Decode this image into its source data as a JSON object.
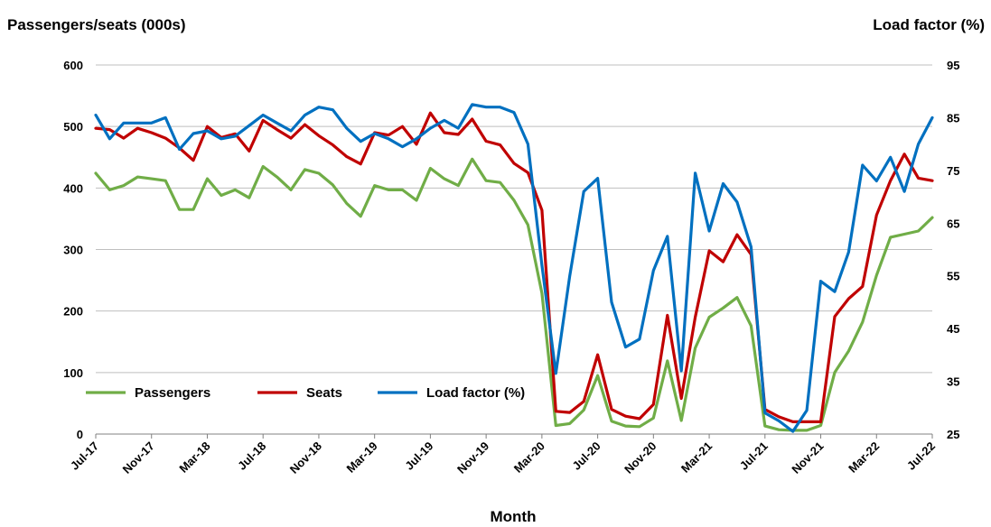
{
  "chart_data": {
    "type": "line",
    "title": "",
    "ylabel_left": "Passengers/seats (000s)",
    "ylabel_right": "Load factor (%)",
    "xlabel": "Month",
    "ylim_left": [
      0,
      600
    ],
    "yticks_left": [
      "0",
      "100",
      "200",
      "300",
      "400",
      "500",
      "600"
    ],
    "ylim_right": [
      25,
      95
    ],
    "yticks_right": [
      "25",
      "35",
      "45",
      "55",
      "65",
      "75",
      "85",
      "95"
    ],
    "grid": "horizontal",
    "legend_position": "bottom-left",
    "x": [
      "Jul-17",
      "Aug-17",
      "Sep-17",
      "Oct-17",
      "Nov-17",
      "Dec-17",
      "Jan-18",
      "Feb-18",
      "Mar-18",
      "Apr-18",
      "May-18",
      "Jun-18",
      "Jul-18",
      "Aug-18",
      "Sep-18",
      "Oct-18",
      "Nov-18",
      "Dec-18",
      "Jan-19",
      "Feb-19",
      "Mar-19",
      "Apr-19",
      "May-19",
      "Jun-19",
      "Jul-19",
      "Aug-19",
      "Sep-19",
      "Oct-19",
      "Nov-19",
      "Dec-19",
      "Jan-20",
      "Feb-20",
      "Mar-20",
      "Apr-20",
      "May-20",
      "Jun-20",
      "Jul-20",
      "Aug-20",
      "Sep-20",
      "Oct-20",
      "Nov-20",
      "Dec-20",
      "Jan-21",
      "Feb-21",
      "Mar-21",
      "Apr-21",
      "May-21",
      "Jun-21",
      "Jul-21",
      "Aug-21",
      "Sep-21",
      "Oct-21",
      "Nov-21",
      "Dec-21",
      "Jan-22",
      "Feb-22",
      "Mar-22",
      "Apr-22",
      "May-22",
      "Jun-22",
      "Jul-22"
    ],
    "x_tick_labels": [
      "Jul-17",
      "Nov-17",
      "Mar-18",
      "Jul-18",
      "Nov-18",
      "Mar-19",
      "Jul-19",
      "Nov-19",
      "Mar-20",
      "Jul-20",
      "Nov-20",
      "Mar-21",
      "Jul-21",
      "Nov-21",
      "Mar-22",
      "Jul-22"
    ],
    "series": [
      {
        "name": "Passengers",
        "axis": "left",
        "color": "#70AD47",
        "values": [
          424,
          397,
          404,
          418,
          415,
          412,
          365,
          365,
          415,
          388,
          397,
          384,
          435,
          418,
          397,
          430,
          424,
          405,
          375,
          354,
          404,
          397,
          397,
          380,
          432,
          415,
          404,
          447,
          412,
          409,
          380,
          340,
          229,
          14,
          17,
          39,
          95,
          21,
          13,
          12,
          26,
          119,
          22,
          140,
          190,
          205,
          222,
          176,
          13,
          7,
          6,
          6,
          14,
          100,
          135,
          182,
          258,
          320,
          325,
          330,
          352
        ]
      },
      {
        "name": "Seats",
        "axis": "left",
        "color": "#C00000",
        "values": [
          497,
          495,
          481,
          497,
          490,
          481,
          465,
          445,
          500,
          482,
          488,
          460,
          510,
          495,
          481,
          503,
          485,
          470,
          451,
          439,
          490,
          486,
          500,
          471,
          522,
          490,
          487,
          512,
          476,
          470,
          440,
          425,
          364,
          37,
          35,
          53,
          129,
          40,
          29,
          25,
          48,
          193,
          58,
          190,
          298,
          280,
          324,
          292,
          40,
          28,
          20,
          20,
          20,
          191,
          220,
          240,
          356,
          412,
          455,
          416,
          412
        ]
      },
      {
        "name": "Load factor (%)",
        "axis": "right",
        "color": "#0070C0",
        "values": [
          85.5,
          81,
          84,
          84,
          84,
          85,
          79,
          82,
          82.5,
          81,
          81.5,
          83.5,
          85.5,
          84,
          82.5,
          85.5,
          87,
          86.5,
          83,
          80.5,
          82,
          81,
          79.5,
          81,
          83,
          84.5,
          83,
          87.5,
          87,
          87,
          86,
          80,
          57,
          36.5,
          55,
          71,
          73.5,
          50,
          41.5,
          43,
          56,
          62.5,
          37,
          74.5,
          63.5,
          72.5,
          69,
          60.5,
          29,
          27.5,
          25.5,
          29.5,
          54,
          52,
          59.5,
          76,
          73,
          77.5,
          71,
          80,
          85
        ]
      }
    ]
  }
}
